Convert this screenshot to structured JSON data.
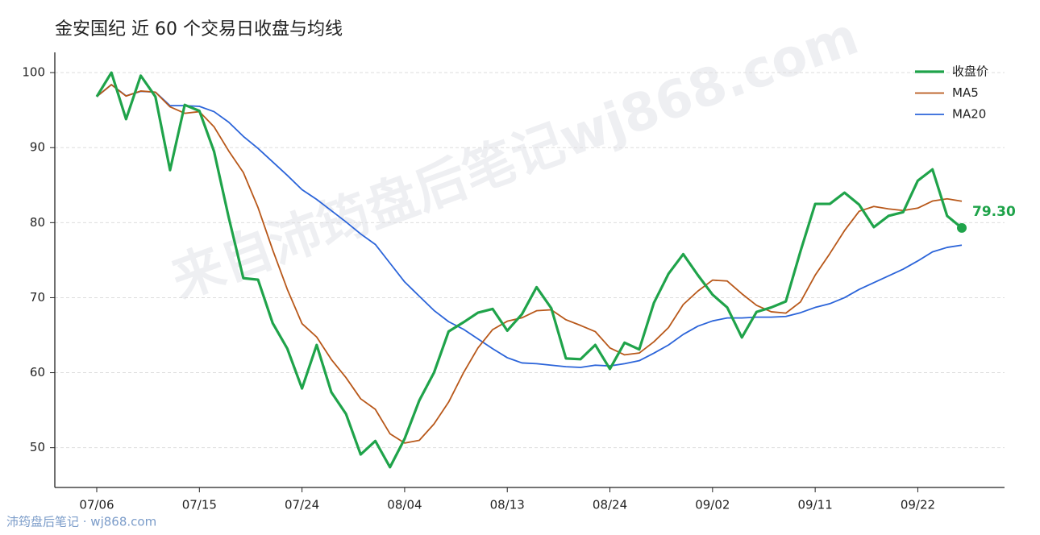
{
  "chart_data": {
    "type": "line",
    "title": "金安国纪 近 60 个交易日收盘与均线",
    "watermark": "来自沛筠盘后笔记wj868.com",
    "footer": "沛筠盘后笔记 · wj868.com",
    "categories": [
      "07/06",
      null,
      null,
      null,
      null,
      null,
      null,
      "07/15",
      null,
      null,
      null,
      null,
      null,
      null,
      "07/24",
      null,
      null,
      null,
      null,
      null,
      null,
      "08/04",
      null,
      null,
      null,
      null,
      null,
      null,
      "08/13",
      null,
      null,
      null,
      null,
      null,
      null,
      "08/24",
      null,
      null,
      null,
      null,
      null,
      null,
      "09/02",
      null,
      null,
      null,
      null,
      null,
      null,
      "09/11",
      null,
      null,
      null,
      null,
      null,
      null,
      "09/22",
      null,
      null,
      null
    ],
    "series": [
      {
        "name": "收盘价",
        "color": "#1fa34a",
        "values": [
          96.8,
          100,
          93.8,
          99.6,
          96.8,
          87.0,
          95.7,
          94.9,
          89.5,
          80.7,
          72.6,
          72.4,
          66.6,
          63.2,
          57.9,
          63.7,
          57.4,
          54.5,
          49.1,
          50.9,
          47.4,
          51.2,
          56.3,
          60.0,
          65.5,
          66.7,
          68.0,
          68.5,
          65.6,
          67.8,
          71.4,
          68.6,
          61.9,
          61.8,
          63.7,
          60.5,
          64.0,
          63.1,
          69.3,
          73.2,
          75.8,
          73.0,
          70.4,
          68.7,
          64.7,
          68.1,
          68.7,
          69.5,
          76.2,
          82.5,
          82.5,
          84.0,
          82.4,
          79.4,
          80.9,
          81.4,
          85.6,
          87.1,
          80.9,
          79.3
        ],
        "value_labels": [
          null,
          null,
          null,
          null,
          null,
          null,
          null,
          null,
          null,
          null,
          null,
          null,
          null,
          null,
          null,
          null,
          null,
          null,
          null,
          null,
          null,
          null,
          null,
          null,
          null,
          null,
          null,
          null,
          null,
          null,
          null,
          null,
          null,
          null,
          null,
          null,
          null,
          null,
          null,
          null,
          null,
          null,
          null,
          null,
          null,
          null,
          null,
          null,
          null,
          null,
          null,
          null,
          null,
          null,
          null,
          null,
          null,
          null,
          null,
          "79.30"
        ]
      },
      {
        "name": "MA5",
        "color": "#b8581a",
        "values": [
          96.8,
          98.4,
          96.87,
          97.55,
          97.4,
          95.44,
          94.58,
          94.8,
          92.78,
          89.56,
          86.68,
          82.02,
          76.36,
          71.1,
          66.54,
          64.76,
          61.76,
          59.34,
          56.52,
          55.12,
          51.86,
          50.62,
          50.98,
          53.16,
          56.08,
          59.94,
          63.3,
          65.74,
          66.86,
          67.32,
          68.26,
          68.38,
          67.06,
          66.3,
          65.48,
          63.3,
          62.38,
          62.62,
          64.12,
          66.02,
          69.08,
          70.88,
          72.34,
          72.22,
          70.52,
          68.98,
          68.12,
          67.94,
          69.44,
          73,
          75.88,
          78.94,
          81.52,
          82.16,
          81.84,
          81.62,
          81.94,
          82.88,
          83.18,
          82.86
        ]
      },
      {
        "name": "MA20",
        "color": "#2b64d9",
        "values": [
          96.8,
          98.4,
          96.9,
          97.5,
          97.4,
          95.6,
          95.6,
          95.5,
          94.8,
          93.4,
          91.5,
          89.9,
          88.1,
          86.3,
          84.4,
          83.1,
          81.6,
          80.1,
          78.5,
          77.1,
          74.6,
          72.1,
          70.2,
          68.3,
          66.8,
          65.8,
          64.5,
          63.2,
          62.0,
          61.3,
          61.2,
          61.0,
          60.8,
          60.7,
          61.0,
          60.9,
          61.2,
          61.6,
          62.6,
          63.7,
          65.1,
          66.2,
          66.9,
          67.3,
          67.3,
          67.4,
          67.4,
          67.5,
          68.0,
          68.7,
          69.2,
          70.0,
          71.1,
          72.0,
          72.9,
          73.8,
          74.9,
          76.1,
          76.7,
          77.0
        ]
      }
    ],
    "ylim": [
      44.7,
      102.7
    ],
    "yticks": [
      50,
      60,
      70,
      80,
      90,
      100
    ],
    "grid": true,
    "legend": "upper right"
  }
}
